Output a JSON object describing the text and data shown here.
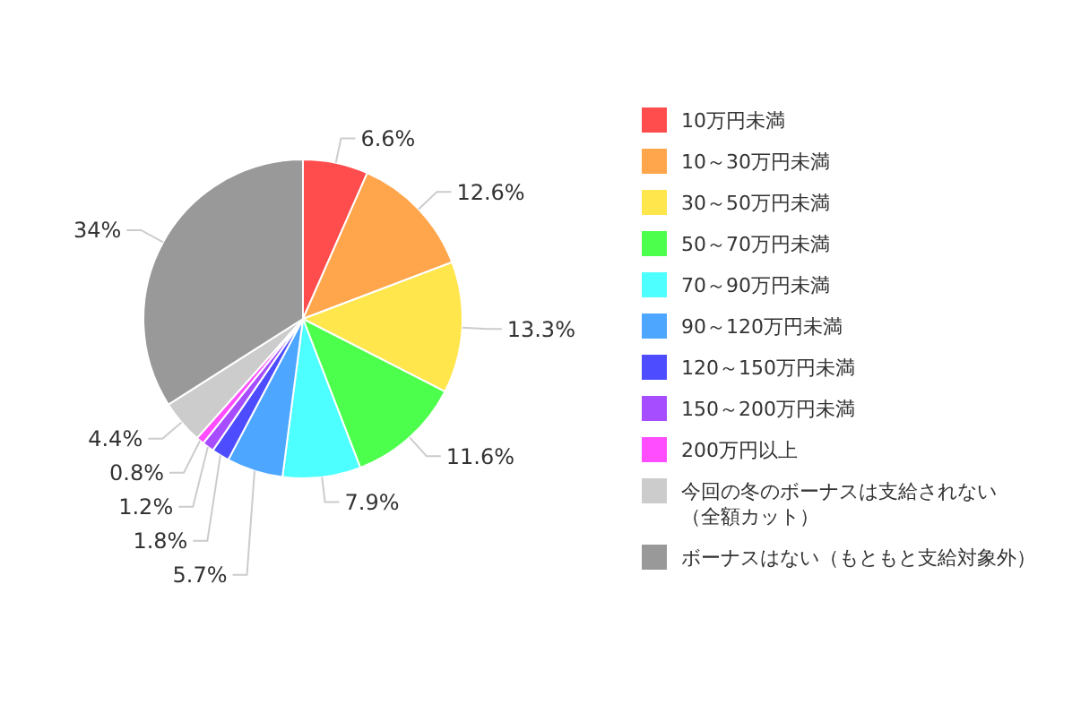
{
  "chart_data": {
    "type": "pie",
    "categories": [
      "10万円未満",
      "10～30万円未満",
      "30～50万円未満",
      "50～70万円未満",
      "70～90万円未満",
      "90～120万円未満",
      "120～150万円未満",
      "150～200万円未満",
      "200万円以上",
      "今回の冬のボーナスは支給されない（全額カット）",
      "ボーナスはない（もともと支給対象外）"
    ],
    "values": [
      6.6,
      12.6,
      13.3,
      11.6,
      7.9,
      5.7,
      1.8,
      1.2,
      0.8,
      4.4,
      34
    ],
    "value_labels": [
      "6.6%",
      "12.6%",
      "13.3%",
      "11.6%",
      "7.9%",
      "5.7%",
      "1.8%",
      "1.2%",
      "0.8%",
      "4.4%",
      "34%"
    ],
    "colors": [
      "#ff4d4d",
      "#ffa64d",
      "#ffe64d",
      "#4dff4d",
      "#4dffff",
      "#4da6ff",
      "#4d4dff",
      "#a64dff",
      "#ff4dff",
      "#cccccc",
      "#999999"
    ],
    "legend": "right"
  }
}
